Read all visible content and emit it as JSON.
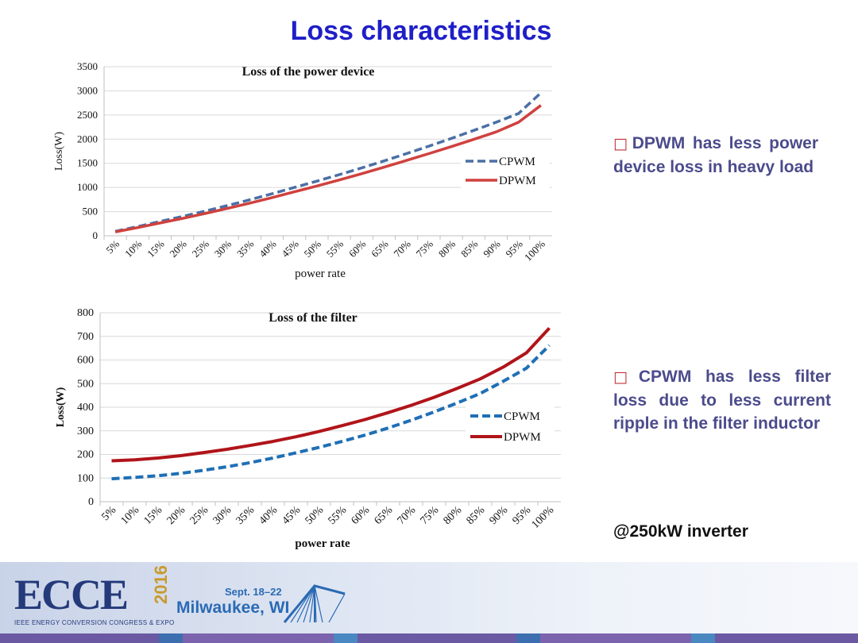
{
  "title": "Loss characteristics",
  "chart_data": [
    {
      "type": "line",
      "title": "Loss of the power device",
      "xlabel": "power rate",
      "ylabel": "Loss(W)",
      "ylim": [
        0,
        3500
      ],
      "yticks": [
        0,
        500,
        1000,
        1500,
        2000,
        2500,
        3000,
        3500
      ],
      "categories": [
        "5%",
        "10%",
        "15%",
        "20%",
        "25%",
        "30%",
        "35%",
        "40%",
        "45%",
        "50%",
        "55%",
        "60%",
        "65%",
        "70%",
        "75%",
        "80%",
        "85%",
        "90%",
        "95%",
        "100%"
      ],
      "series": [
        {
          "name": "CPWM",
          "style": "dashed",
          "color": "#4a6fa5",
          "values": [
            90,
            190,
            295,
            400,
            510,
            625,
            745,
            870,
            1000,
            1130,
            1265,
            1405,
            1550,
            1700,
            1855,
            2015,
            2180,
            2350,
            2530,
            2960
          ]
        },
        {
          "name": "DPWM",
          "style": "solid",
          "color": "#d0413e",
          "values": [
            80,
            170,
            265,
            360,
            460,
            565,
            675,
            790,
            910,
            1030,
            1155,
            1285,
            1420,
            1560,
            1700,
            1845,
            1995,
            2150,
            2350,
            2700
          ]
        }
      ],
      "grid": true,
      "legend_position": "right"
    },
    {
      "type": "line",
      "title": "Loss of the filter",
      "xlabel": "power rate",
      "ylabel": "Loss(W)",
      "ylim": [
        0,
        800
      ],
      "yticks": [
        0,
        100,
        200,
        300,
        400,
        500,
        600,
        700,
        800
      ],
      "categories": [
        "5%",
        "10%",
        "15%",
        "20%",
        "25%",
        "30%",
        "35%",
        "40%",
        "45%",
        "50%",
        "55%",
        "60%",
        "65%",
        "70%",
        "75%",
        "80%",
        "85%",
        "90%",
        "95%",
        "100%"
      ],
      "series": [
        {
          "name": "CPWM",
          "style": "dashed",
          "color": "#1f6fb5",
          "values": [
            97,
            103,
            110,
            120,
            133,
            148,
            165,
            185,
            207,
            230,
            255,
            282,
            312,
            345,
            380,
            418,
            458,
            510,
            565,
            662
          ]
        },
        {
          "name": "DPWM",
          "style": "solid",
          "color": "#b0141a",
          "values": [
            173,
            177,
            185,
            195,
            208,
            222,
            238,
            255,
            275,
            297,
            322,
            348,
            377,
            408,
            442,
            480,
            520,
            570,
            630,
            735
          ]
        }
      ],
      "grid": true,
      "legend_position": "right"
    }
  ],
  "bullets": [
    {
      "box": "□",
      "text": "DPWM has less power device loss in heavy load"
    },
    {
      "box": "□",
      "text": "CPWM has less filter loss due to less current ripple in the filter inductor"
    }
  ],
  "note": "@250kW inverter",
  "footer": {
    "logo_text": "ECCE",
    "year": "2016",
    "subtitle": "IEEE ENERGY CONVERSION CONGRESS & EXPO",
    "dates": "Sept. 18–22",
    "city": "Milwaukee, WI"
  },
  "colors": {
    "title": "#1f1fc8",
    "bullet_text": "#4b4b8c",
    "bullet_box": "#c0303a"
  }
}
